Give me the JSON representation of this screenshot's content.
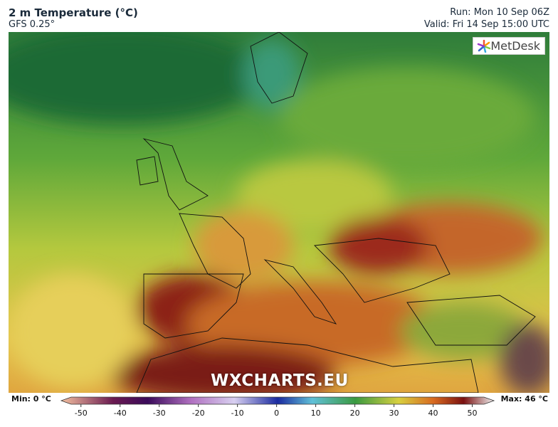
{
  "header": {
    "title": "2 m Temperature (°C)",
    "model": "GFS 0.25°",
    "run": "Run: Mon 10 Sep 06Z",
    "valid": "Valid: Fri 14 Sep 15:00 UTC"
  },
  "logo": "MetDesk",
  "watermark": "WXCHARTS.EU",
  "colorbar": {
    "min_label": "Min: 0 °C",
    "max_label": "Max: 46 °C",
    "range": [
      -52.5,
      53
    ],
    "ticks": [
      -50,
      -40,
      -30,
      -20,
      -10,
      0,
      10,
      20,
      30,
      40,
      50
    ]
  }
}
